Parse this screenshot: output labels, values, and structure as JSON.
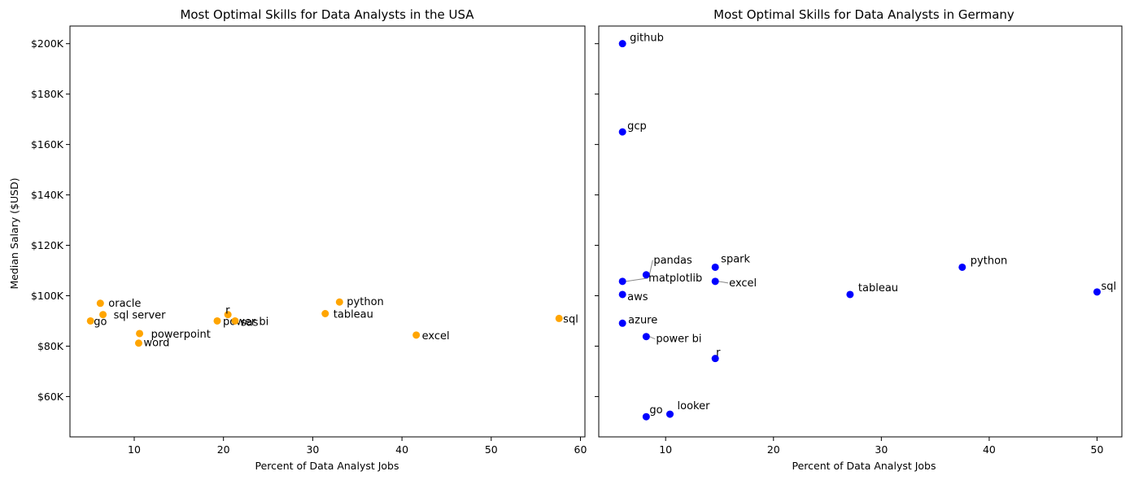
{
  "chart_data": [
    {
      "type": "scatter",
      "title": "Most Optimal Skills for Data Analysts in the USA",
      "xlabel": "Percent of Data Analyst Jobs",
      "ylabel": "Median Salary ($USD)",
      "xlim": [
        2.8,
        60.5
      ],
      "ylim": [
        44000,
        207000
      ],
      "xticks": [
        10,
        20,
        30,
        40,
        50,
        60
      ],
      "xtick_labels": [
        "10",
        "20",
        "30",
        "40",
        "50",
        "60"
      ],
      "yticks": [
        60000,
        80000,
        100000,
        120000,
        140000,
        160000,
        180000,
        200000
      ],
      "ytick_labels": [
        "$60K",
        "$80K",
        "$100K",
        "$120K",
        "$140K",
        "$160K",
        "$180K",
        "$200K"
      ],
      "grid": false,
      "color": "#FFA500",
      "points": [
        {
          "label": "oracle",
          "x": 6.2,
          "y": 97000
        },
        {
          "label": "sql server",
          "x": 6.5,
          "y": 92500
        },
        {
          "label": "go",
          "x": 5.1,
          "y": 90000
        },
        {
          "label": "powerpoint",
          "x": 10.6,
          "y": 85000
        },
        {
          "label": "word",
          "x": 10.5,
          "y": 81200
        },
        {
          "label": "r",
          "x": 20.5,
          "y": 92500
        },
        {
          "label": "power bi",
          "x": 19.3,
          "y": 90000
        },
        {
          "label": "sas",
          "x": 21.3,
          "y": 90000
        },
        {
          "label": "tableau",
          "x": 31.4,
          "y": 92900
        },
        {
          "label": "python",
          "x": 33.0,
          "y": 97500
        },
        {
          "label": "excel",
          "x": 41.6,
          "y": 84400
        },
        {
          "label": "sql",
          "x": 57.6,
          "y": 91000
        }
      ]
    },
    {
      "type": "scatter",
      "title": "Most Optimal Skills for Data Analysts in Germany",
      "xlabel": "Percent of Data Analyst Jobs",
      "ylabel": "",
      "xlim": [
        3.8,
        52.3
      ],
      "ylim": [
        44000,
        207000
      ],
      "xticks": [
        10,
        20,
        30,
        40,
        50
      ],
      "xtick_labels": [
        "10",
        "20",
        "30",
        "40",
        "50"
      ],
      "yticks": [
        60000,
        80000,
        100000,
        120000,
        140000,
        160000,
        180000,
        200000
      ],
      "grid": false,
      "color": "#0000FF",
      "points": [
        {
          "label": "github",
          "x": 6.0,
          "y": 200000
        },
        {
          "label": "gcp",
          "x": 6.0,
          "y": 165000
        },
        {
          "label": "pandas",
          "x": 8.2,
          "y": 108300
        },
        {
          "label": "matplotlib",
          "x": 6.0,
          "y": 105700
        },
        {
          "label": "spark",
          "x": 14.6,
          "y": 111300
        },
        {
          "label": "excel",
          "x": 14.6,
          "y": 105700
        },
        {
          "label": "aws",
          "x": 6.0,
          "y": 100500
        },
        {
          "label": "python",
          "x": 37.5,
          "y": 111300
        },
        {
          "label": "tableau",
          "x": 27.1,
          "y": 100500
        },
        {
          "label": "sql",
          "x": 50.0,
          "y": 101500
        },
        {
          "label": "azure",
          "x": 6.0,
          "y": 89100
        },
        {
          "label": "power bi",
          "x": 8.2,
          "y": 83800
        },
        {
          "label": "r",
          "x": 14.6,
          "y": 75100
        },
        {
          "label": "looker",
          "x": 10.4,
          "y": 53000
        },
        {
          "label": "go",
          "x": 8.2,
          "y": 52000
        }
      ]
    }
  ]
}
